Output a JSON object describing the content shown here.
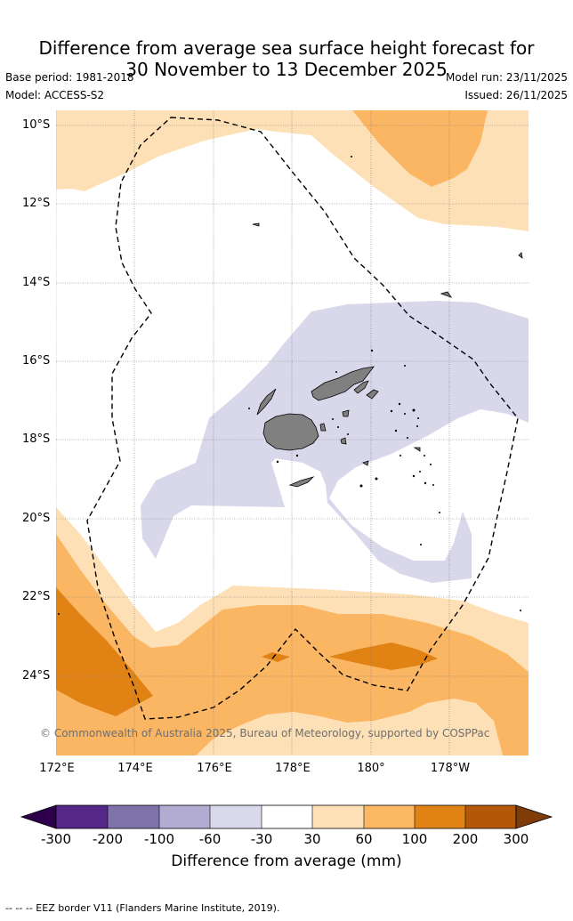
{
  "header": {
    "title_line1": "Difference from average sea surface height forecast for",
    "title_line2": "30 November to 13 December 2025",
    "base_period": "Base period: 1981-2018",
    "model": "Model: ACCESS-S2",
    "model_run": "Model run: 23/11/2025",
    "issued": "Issued: 26/11/2025"
  },
  "map": {
    "lat_labels": [
      "10°S",
      "12°S",
      "14°S",
      "16°S",
      "18°S",
      "20°S",
      "22°S",
      "24°S"
    ],
    "lon_labels": [
      "172°E",
      "174°E",
      "176°E",
      "178°E",
      "180°",
      "178°W"
    ],
    "copyright": "© Commonwealth of Australia 2025, Bureau of Meteorology, supported by COSPPac",
    "colors": {
      "land": "#808080",
      "neg_30_60": "#d8d8ea",
      "pos_30_60": "#fee0b6",
      "pos_60_100": "#fbb664",
      "pos_100_200": "#e08214",
      "eez_border": "#000000"
    }
  },
  "colorbar": {
    "label": "Difference from average (mm)",
    "ticks": [
      "-300",
      "-200",
      "-100",
      "-60",
      "-30",
      "30",
      "60",
      "100",
      "200",
      "300"
    ],
    "colors": [
      "#2d004b",
      "#542788",
      "#8073ac",
      "#b2abd2",
      "#d8daeb",
      "#ffffff",
      "#fee0b6",
      "#fdb863",
      "#e08214",
      "#b35806",
      "#7f3b08"
    ]
  },
  "footnote": "-- -- -- EEZ border V11 (Flanders Marine Institute, 2019)."
}
